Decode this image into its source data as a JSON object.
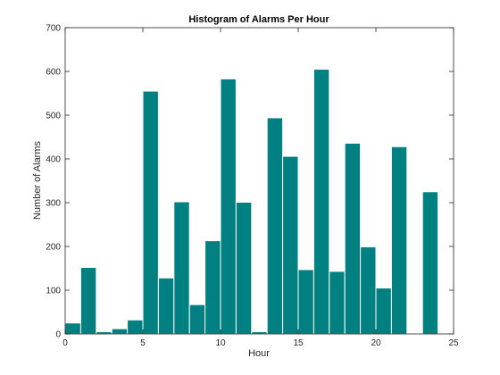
{
  "chart_data": {
    "type": "bar",
    "title": "Histogram of Alarms Per Hour",
    "xlabel": "Hour",
    "ylabel": "Number of Alarms",
    "xlim": [
      0,
      25
    ],
    "ylim": [
      0,
      700
    ],
    "xticks": [
      0,
      5,
      10,
      15,
      20,
      25
    ],
    "yticks": [
      0,
      100,
      200,
      300,
      400,
      500,
      600,
      700
    ],
    "bar_color": "#008080",
    "grid": false,
    "bins": [
      {
        "x0": 0,
        "x1": 1,
        "value": 25
      },
      {
        "x0": 1,
        "x1": 2,
        "value": 152
      },
      {
        "x0": 2,
        "x1": 3,
        "value": 5
      },
      {
        "x0": 3,
        "x1": 4,
        "value": 12
      },
      {
        "x0": 4,
        "x1": 5,
        "value": 32
      },
      {
        "x0": 5,
        "x1": 6,
        "value": 555
      },
      {
        "x0": 6,
        "x1": 7,
        "value": 128
      },
      {
        "x0": 7,
        "x1": 8,
        "value": 302
      },
      {
        "x0": 8,
        "x1": 9,
        "value": 67
      },
      {
        "x0": 9,
        "x1": 10,
        "value": 213
      },
      {
        "x0": 10,
        "x1": 11,
        "value": 583
      },
      {
        "x0": 11,
        "x1": 12,
        "value": 301
      },
      {
        "x0": 12,
        "x1": 13,
        "value": 5
      },
      {
        "x0": 13,
        "x1": 14,
        "value": 494
      },
      {
        "x0": 14,
        "x1": 15,
        "value": 406
      },
      {
        "x0": 15,
        "x1": 16,
        "value": 147
      },
      {
        "x0": 16,
        "x1": 17,
        "value": 605
      },
      {
        "x0": 17,
        "x1": 18,
        "value": 143
      },
      {
        "x0": 18,
        "x1": 19,
        "value": 436
      },
      {
        "x0": 19,
        "x1": 20,
        "value": 199
      },
      {
        "x0": 20,
        "x1": 21,
        "value": 105
      },
      {
        "x0": 21,
        "x1": 22,
        "value": 428
      },
      {
        "x0": 22,
        "x1": 23,
        "value": 0
      },
      {
        "x0": 23,
        "x1": 24,
        "value": 325
      }
    ]
  }
}
